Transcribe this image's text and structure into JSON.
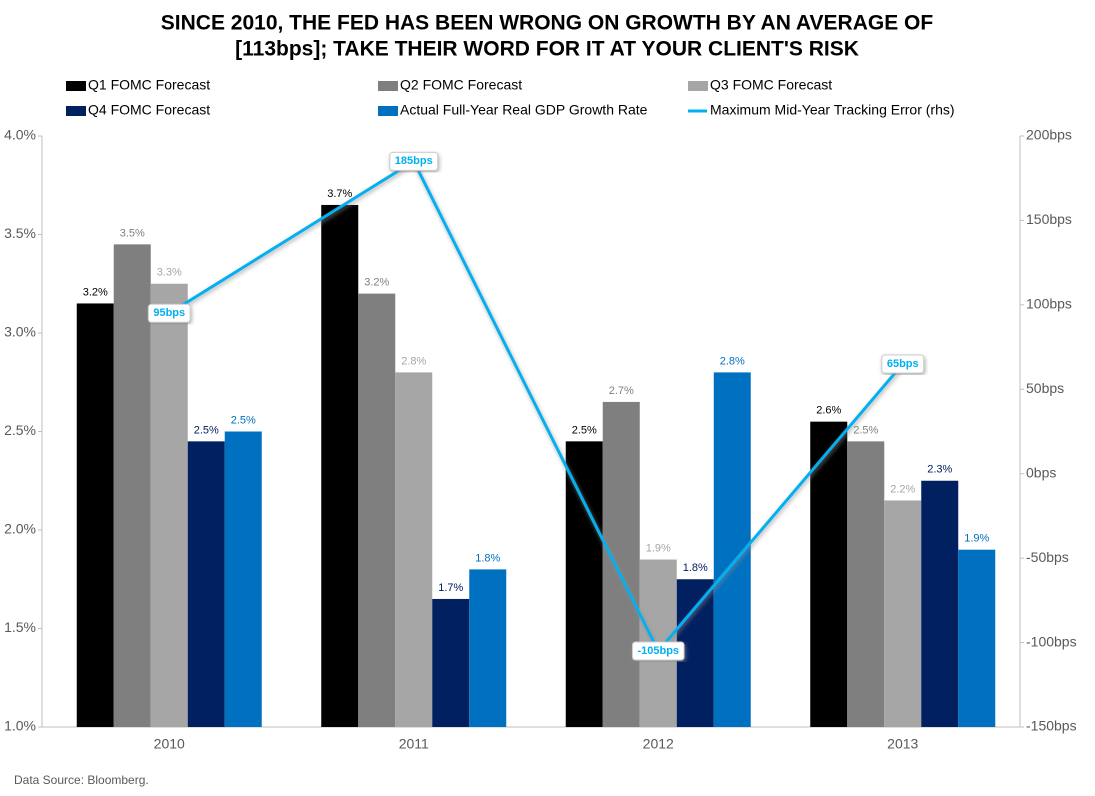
{
  "chart_data": {
    "type": "bar",
    "title": [
      "SINCE 2010, THE FED HAS BEEN WRONG ON GROWTH BY AN AVERAGE OF",
      "[113bps]; TAKE THEIR WORD FOR IT AT YOUR CLIENT'S RISK"
    ],
    "source": "Data Source: Bloomberg.",
    "categories": [
      "2010",
      "2011",
      "2012",
      "2013"
    ],
    "ylim": [
      1,
      4
    ],
    "yticks": [
      {
        "value": 1,
        "label": "1.0%"
      },
      {
        "value": 1.5,
        "label": "1.5%"
      },
      {
        "value": 2,
        "label": "2.0%"
      },
      {
        "value": 2.5,
        "label": "2.5%"
      },
      {
        "value": 3,
        "label": "3.0%"
      },
      {
        "value": 3.5,
        "label": "3.5%"
      },
      {
        "value": 4,
        "label": "4.0%"
      }
    ],
    "y2lim": [
      -150,
      200
    ],
    "y2ticks": [
      {
        "value": -150,
        "label": "-150bps"
      },
      {
        "value": -100,
        "label": "-100bps"
      },
      {
        "value": -50,
        "label": "-50bps"
      },
      {
        "value": 0,
        "label": "0bps"
      },
      {
        "value": 50,
        "label": "50bps"
      },
      {
        "value": 100,
        "label": "100bps"
      },
      {
        "value": 150,
        "label": "150bps"
      },
      {
        "value": 200,
        "label": "200bps"
      }
    ],
    "series": [
      {
        "name": "Q1 FOMC Forecast",
        "type": "bar",
        "color": "#000000",
        "values": [
          3.15,
          3.65,
          2.45,
          2.55
        ],
        "value_labels": [
          "3.2%",
          "3.7%",
          "2.5%",
          "2.6%"
        ]
      },
      {
        "name": "Q2 FOMC Forecast",
        "type": "bar",
        "color": "#7f7f7f",
        "values": [
          3.45,
          3.2,
          2.65,
          2.45
        ],
        "value_labels": [
          "3.5%",
          "3.2%",
          "2.7%",
          "2.5%"
        ]
      },
      {
        "name": "Q3 FOMC Forecast",
        "type": "bar",
        "color": "#a6a6a6",
        "values": [
          3.25,
          2.8,
          1.85,
          2.15
        ],
        "value_labels": [
          "3.3%",
          "2.8%",
          "1.9%",
          "2.2%"
        ]
      },
      {
        "name": "Q4 FOMC Forecast",
        "type": "bar",
        "color": "#002060",
        "values": [
          2.45,
          1.65,
          1.75,
          2.25
        ],
        "value_labels": [
          "2.5%",
          "1.7%",
          "1.8%",
          "2.3%"
        ]
      },
      {
        "name": "Actual Full-Year Real GDP Growth Rate",
        "type": "bar",
        "color": "#0070c0",
        "values": [
          2.5,
          1.8,
          2.8,
          1.9
        ],
        "value_labels": [
          "2.5%",
          "1.8%",
          "2.8%",
          "1.9%"
        ]
      },
      {
        "name": "Maximum Mid-Year Tracking Error (rhs)",
        "type": "line",
        "axis": "y2",
        "color": "#00b0f0",
        "values": [
          95,
          185,
          -105,
          65
        ],
        "value_labels": [
          "95bps",
          "185bps",
          "-105bps",
          "65bps"
        ]
      }
    ]
  }
}
